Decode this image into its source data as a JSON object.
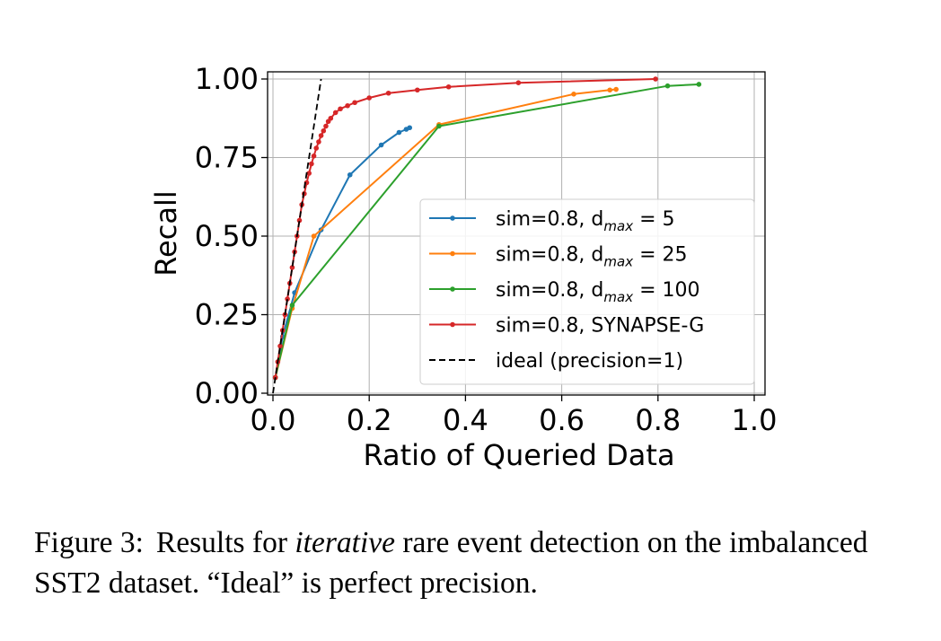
{
  "chart_data": {
    "type": "line",
    "xlabel": "Ratio of Queried Data",
    "ylabel": "Recall",
    "xlim": [
      0.0,
      1.0
    ],
    "ylim": [
      0.0,
      1.0
    ],
    "xticks": [
      "0.0",
      "0.2",
      "0.4",
      "0.6",
      "0.8",
      "1.0"
    ],
    "yticks": [
      "0.00",
      "0.25",
      "0.50",
      "0.75",
      "1.00"
    ],
    "grid": true,
    "legend_position": "lower-right",
    "series": [
      {
        "name_prefix": "sim=0.8, d",
        "name_sub": "max",
        "name_suffix": " = 5",
        "color": "#1f77b4",
        "marker": true,
        "x": [
          0.005,
          0.02,
          0.045,
          0.1,
          0.16,
          0.225,
          0.262,
          0.277,
          0.284
        ],
        "y": [
          0.05,
          0.18,
          0.32,
          0.52,
          0.695,
          0.79,
          0.83,
          0.84,
          0.845
        ]
      },
      {
        "name_prefix": "sim=0.8, d",
        "name_sub": "max",
        "name_suffix": " = 25",
        "color": "#ff7f0e",
        "marker": true,
        "x": [
          0.005,
          0.04,
          0.085,
          0.345,
          0.625,
          0.7,
          0.713
        ],
        "y": [
          0.05,
          0.27,
          0.5,
          0.855,
          0.952,
          0.965,
          0.967
        ]
      },
      {
        "name_prefix": "sim=0.8, d",
        "name_sub": "max",
        "name_suffix": " = 100",
        "color": "#2ca02c",
        "marker": true,
        "x": [
          0.005,
          0.04,
          0.345,
          0.82,
          0.885
        ],
        "y": [
          0.05,
          0.28,
          0.85,
          0.978,
          0.983
        ]
      },
      {
        "name_prefix": "sim=0.8, SYNAPSE-G",
        "name_sub": "",
        "name_suffix": "",
        "color": "#d62728",
        "marker": true,
        "x": [
          0.005,
          0.01,
          0.015,
          0.02,
          0.025,
          0.03,
          0.035,
          0.04,
          0.045,
          0.05,
          0.055,
          0.06,
          0.065,
          0.07,
          0.075,
          0.08,
          0.085,
          0.09,
          0.095,
          0.1,
          0.105,
          0.11,
          0.115,
          0.12,
          0.13,
          0.14,
          0.155,
          0.17,
          0.2,
          0.24,
          0.3,
          0.365,
          0.51,
          0.795
        ],
        "y": [
          0.05,
          0.1,
          0.15,
          0.2,
          0.25,
          0.3,
          0.35,
          0.4,
          0.45,
          0.5,
          0.55,
          0.6,
          0.635,
          0.67,
          0.7,
          0.73,
          0.755,
          0.78,
          0.8,
          0.82,
          0.835,
          0.85,
          0.865,
          0.875,
          0.893,
          0.905,
          0.915,
          0.925,
          0.94,
          0.955,
          0.965,
          0.975,
          0.988,
          1.0
        ]
      },
      {
        "name_prefix": "ideal (precision=1)",
        "name_sub": "",
        "name_suffix": "",
        "color": "#000000",
        "dashed": true,
        "marker": false,
        "x": [
          0.0,
          0.1
        ],
        "y": [
          0.0,
          1.0
        ]
      }
    ]
  },
  "caption": {
    "label": "Figure 3:",
    "text_before": "Results for ",
    "text_emph": "iterative",
    "text_after": " rare event detection on the imbalanced SST2 dataset. “Ideal” is perfect precision."
  }
}
